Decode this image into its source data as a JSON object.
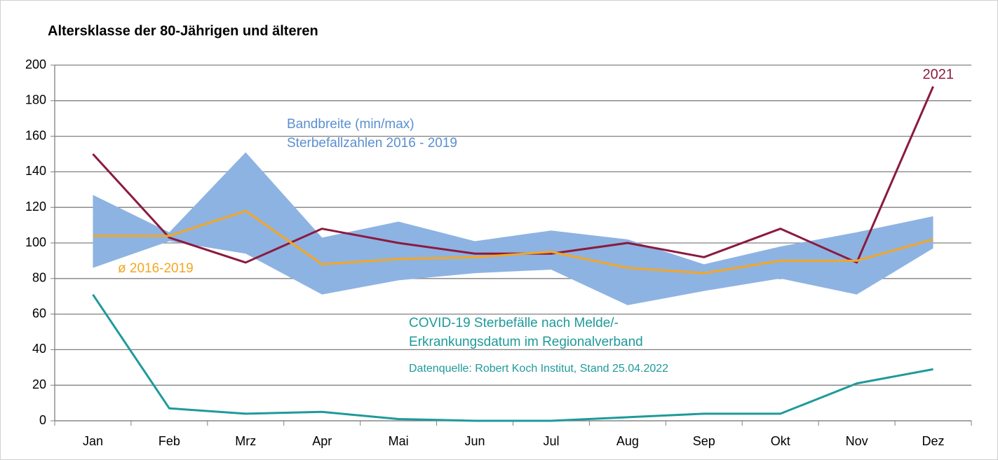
{
  "chart_data": {
    "type": "line",
    "title": "Altersklasse der  80-Jährigen und älteren",
    "categories": [
      "Jan",
      "Feb",
      "Mrz",
      "Apr",
      "Mai",
      "Jun",
      "Jul",
      "Aug",
      "Sep",
      "Okt",
      "Nov",
      "Dez"
    ],
    "ylim": [
      0,
      200
    ],
    "yticks": [
      0,
      20,
      40,
      60,
      80,
      100,
      120,
      140,
      160,
      180,
      200
    ],
    "grid": true,
    "band": {
      "name": [
        "Bandbreite (min/max)",
        "Sterbefallzahlen 2016 - 2019"
      ],
      "color": "#8db3e2",
      "min": [
        86,
        101,
        94,
        71,
        79,
        83,
        85,
        65,
        73,
        80,
        71,
        97
      ],
      "max": [
        127,
        106,
        151,
        103,
        112,
        101,
        107,
        102,
        88,
        98,
        106,
        115
      ]
    },
    "series": [
      {
        "name": "2021",
        "color": "#8b1a3f",
        "values": [
          150,
          103,
          89,
          108,
          100,
          94,
          94,
          100,
          92,
          108,
          89,
          188
        ]
      },
      {
        "name": "ø 2016-2019",
        "color": "#f5a623",
        "values": [
          104,
          104,
          118,
          88,
          91,
          92,
          95,
          86,
          83,
          90,
          90,
          102
        ]
      },
      {
        "name": [
          "COVID-19 Sterbefälle nach Melde/-",
          "Erkrankungsdatum im Regionalverband"
        ],
        "color": "#1f9a9a",
        "values": [
          71,
          7,
          4,
          5,
          1,
          0,
          0,
          2,
          4,
          4,
          21,
          29
        ]
      }
    ],
    "source": "Datenquelle:  Robert Koch Institut, Stand 25.04.2022"
  }
}
